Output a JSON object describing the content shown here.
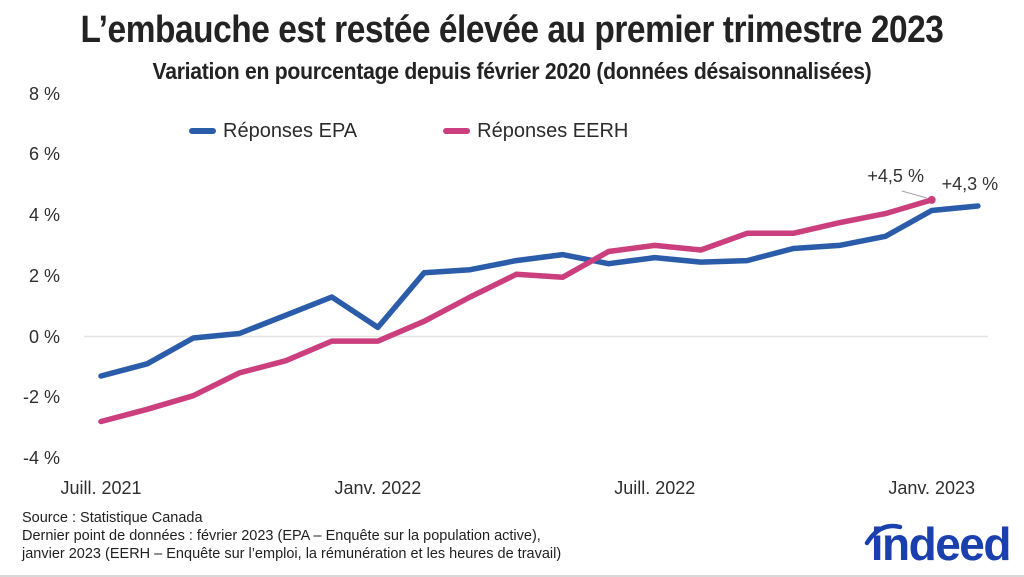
{
  "chart_data": {
    "type": "line",
    "title": "L’embauche est restée élevée au premier trimestre 2023",
    "subtitle": "Variation en pourcentage depuis février 2020 (données désaisonnalisées)",
    "x_unit": "month",
    "x": [
      "2021-07",
      "2021-08",
      "2021-09",
      "2021-10",
      "2021-11",
      "2021-12",
      "2022-01",
      "2022-02",
      "2022-03",
      "2022-04",
      "2022-05",
      "2022-06",
      "2022-07",
      "2022-08",
      "2022-09",
      "2022-10",
      "2022-11",
      "2022-12",
      "2023-01",
      "2023-02"
    ],
    "series": [
      {
        "name": "Réponses EPA",
        "color": "#2b5caa",
        "values": [
          -1.3,
          -0.9,
          -0.05,
          0.1,
          0.7,
          1.3,
          0.3,
          2.1,
          2.2,
          2.5,
          2.7,
          2.4,
          2.6,
          2.45,
          2.5,
          2.9,
          3.0,
          3.3,
          4.15,
          4.3
        ]
      },
      {
        "name": "Réponses EERH",
        "color": "#cb3f7f",
        "values": [
          -2.8,
          -2.4,
          -1.95,
          -1.2,
          -0.8,
          -0.15,
          -0.15,
          0.5,
          1.3,
          2.05,
          1.95,
          2.8,
          3.0,
          2.85,
          3.4,
          3.4,
          3.75,
          4.05,
          4.5
        ]
      }
    ],
    "xticks": [
      {
        "index": 0,
        "label": "Juill. 2021"
      },
      {
        "index": 6,
        "label": "Janv. 2022"
      },
      {
        "index": 12,
        "label": "Juill. 2022"
      },
      {
        "index": 18,
        "label": "Janv. 2023"
      }
    ],
    "yticks": [
      {
        "value": 8,
        "label": "8 %"
      },
      {
        "value": 6,
        "label": "6 %"
      },
      {
        "value": 4,
        "label": "4 %"
      },
      {
        "value": 2,
        "label": "2 %"
      },
      {
        "value": 0,
        "label": "0 %"
      },
      {
        "value": -2,
        "label": "-2 %"
      },
      {
        "value": -4,
        "label": "-4 %"
      }
    ],
    "ylim": [
      -4,
      8
    ],
    "grid": "zero-line-only",
    "legend_position": "top",
    "annotations": [
      {
        "series": "Réponses EERH",
        "label": "+4,5 %"
      },
      {
        "series": "Réponses EPA",
        "label": "+4,3 %"
      }
    ]
  },
  "footer": {
    "source": "Source : Statistique Canada",
    "note_line1": "Dernier point de données : février 2023 (EPA – Enquête sur la population active),",
    "note_line2": "janvier 2023 (EERH – Enquête sur l’emploi, la rémunération et les heures de travail)"
  },
  "branding": {
    "logo_text": "indeed",
    "color": "#1a3fae"
  }
}
